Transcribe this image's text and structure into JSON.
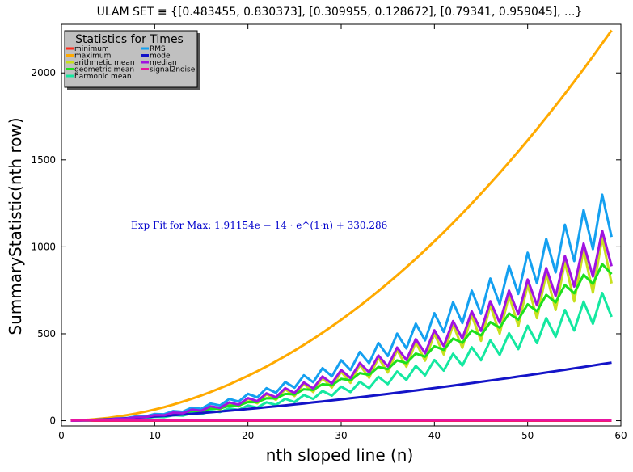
{
  "chart_data": {
    "type": "line",
    "title": "ULAM SET ≡ {[0.483455, 0.830373], [0.309955, 0.128672], [0.79341, 0.959045], ...}",
    "xlabel": "nth sloped line (n)",
    "ylabel": "SummaryStatistic(nth row)",
    "xlim": [
      0,
      60
    ],
    "ylim": [
      -30,
      2280
    ],
    "x_ticks": [
      0,
      10,
      20,
      30,
      40,
      50,
      60
    ],
    "y_ticks": [
      0,
      500,
      1000,
      1500,
      2000
    ],
    "grid": false,
    "legend": {
      "title": "Statistics for Times",
      "placement": "top-left",
      "columns": 2
    },
    "annotation": "Exp Fit for Max: 1.91154e − 14 · e^(1·n) + 330.286",
    "x_start": 1,
    "x_end": 59,
    "series": [
      {
        "name": "minimum",
        "color": "#ff2a1a",
        "kind": "const",
        "value": 0
      },
      {
        "name": "maximum",
        "color": "#ffaa00",
        "kind": "power",
        "scale": 0.645,
        "exp": 2
      },
      {
        "name": "arithmetic mean",
        "color": "#c8e01e",
        "kind": "zigzag",
        "base": 0.27,
        "exp": 2,
        "amp": 0.16
      },
      {
        "name": "geometric mean",
        "color": "#1ee01e",
        "kind": "zigzag",
        "base": 0.255,
        "exp": 2,
        "amp": 0.05
      },
      {
        "name": "harmonic mean",
        "color": "#14e8a0",
        "kind": "zigzag",
        "base": 0.195,
        "exp": 2,
        "amp": 0.12
      },
      {
        "name": "RMS",
        "color": "#14a0f0",
        "kind": "zigzag",
        "base": 0.345,
        "exp": 2,
        "amp": 0.12
      },
      {
        "name": "mode",
        "color": "#1414c8",
        "kind": "power",
        "scale": 0.8,
        "exp": 1.48
      },
      {
        "name": "median",
        "color": "#a014e0",
        "kind": "zigzag",
        "base": 0.29,
        "exp": 2,
        "amp": 0.12
      },
      {
        "name": "signal2noise",
        "color": "#e814a0",
        "kind": "const",
        "value": 2
      }
    ]
  }
}
